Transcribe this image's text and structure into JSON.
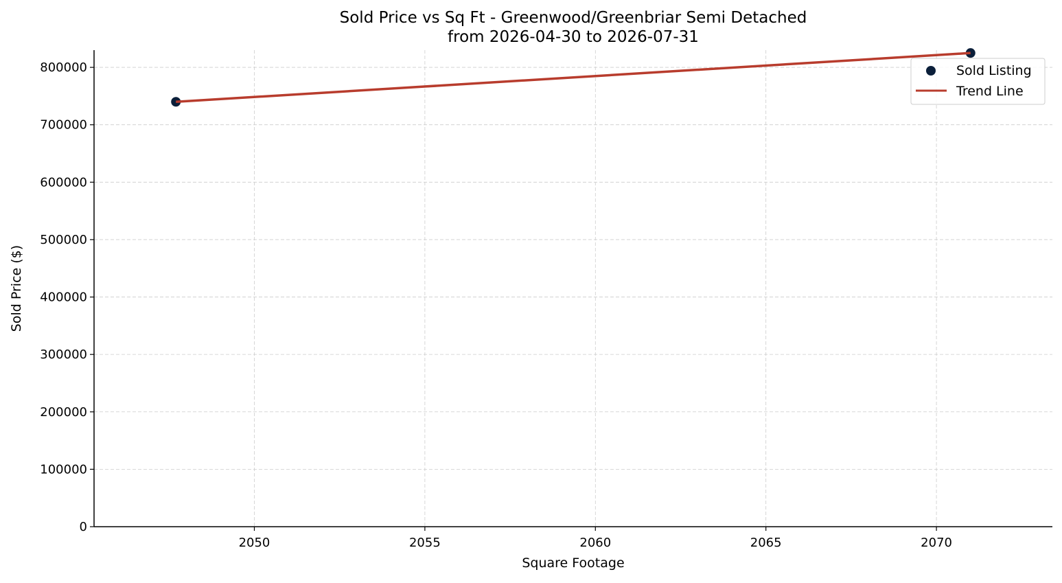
{
  "chart_data": {
    "type": "scatter",
    "title_lines": [
      "Sold Price vs Sq Ft - Greenwood/Greenbriar Semi Detached",
      "from 2026-04-30 to 2026-07-31"
    ],
    "xlabel": "Square Footage",
    "ylabel": "Sold Price ($)",
    "xlim": [
      2045.3,
      2073.4
    ],
    "ylim": [
      0,
      830000
    ],
    "x_ticks": [
      2050,
      2055,
      2060,
      2065,
      2070
    ],
    "x_tick_labels": [
      "2050",
      "2055",
      "2060",
      "2065",
      "2070"
    ],
    "y_ticks": [
      0,
      100000,
      200000,
      300000,
      400000,
      500000,
      600000,
      700000,
      800000
    ],
    "y_tick_labels": [
      "0",
      "100000",
      "200000",
      "300000",
      "400000",
      "500000",
      "600000",
      "700000",
      "800000"
    ],
    "grid": true,
    "legend_position": "top-right",
    "series": [
      {
        "name": "Sold Listing",
        "kind": "scatter",
        "color": "#0b1f3a",
        "points": [
          {
            "x": 2047.7,
            "y": 740000
          },
          {
            "x": 2071.0,
            "y": 825000
          }
        ]
      },
      {
        "name": "Trend Line",
        "kind": "line",
        "color": "#b83c2d",
        "points": [
          {
            "x": 2047.7,
            "y": 740000
          },
          {
            "x": 2071.0,
            "y": 825000
          }
        ]
      }
    ]
  }
}
